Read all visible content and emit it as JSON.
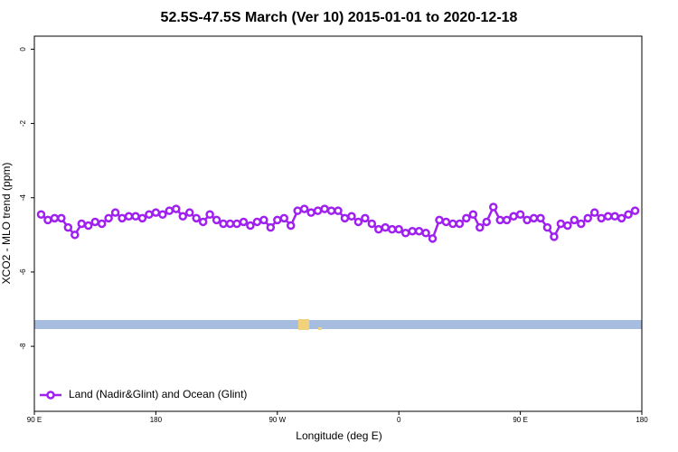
{
  "chart_data": {
    "type": "line",
    "title": "52.5S-47.5S March (Ver 10)   2015-01-01 to 2020-12-18",
    "x_label": "Longitude (deg E)",
    "y_label": "XCO2 - MLO trend (ppm)",
    "xlim": [
      90,
      540
    ],
    "ylim": [
      -9.75,
      0.35
    ],
    "xticks": [
      {
        "value": 90,
        "label": "90 E"
      },
      180,
      {
        "value": 270,
        "label": "90 W"
      },
      {
        "value": 360,
        "label": "0"
      },
      {
        "value": 450,
        "label": "90 E"
      },
      {
        "value": 540,
        "label": "180"
      }
    ],
    "yticks": [
      0,
      -2,
      -4,
      -6,
      -8
    ],
    "legend": "bottom-left",
    "x": [
      95,
      100,
      105,
      110,
      115,
      120,
      125,
      130,
      135,
      140,
      145,
      150,
      155,
      160,
      165,
      170,
      175,
      180,
      185,
      190,
      195,
      200,
      205,
      210,
      215,
      220,
      225,
      230,
      235,
      240,
      245,
      250,
      255,
      260,
      265,
      270,
      275,
      280,
      285,
      290,
      295,
      300,
      305,
      310,
      315,
      320,
      325,
      330,
      335,
      340,
      345,
      350,
      355,
      360,
      365,
      370,
      375,
      380,
      385,
      390,
      395,
      400,
      405,
      410,
      415,
      420,
      425,
      430,
      435,
      440,
      445,
      450,
      455,
      460,
      465,
      470,
      475,
      480,
      485,
      490,
      495,
      500,
      505,
      510,
      515,
      520,
      525,
      530,
      535
    ],
    "series": [
      {
        "name": "Land (Nadir&Glint) and Ocean (Glint)",
        "color": "#a020f0",
        "values": [
          -4.45,
          -4.6,
          -4.55,
          -4.55,
          -4.8,
          -5.0,
          -4.7,
          -4.75,
          -4.65,
          -4.7,
          -4.55,
          -4.4,
          -4.55,
          -4.5,
          -4.5,
          -4.55,
          -4.45,
          -4.4,
          -4.45,
          -4.35,
          -4.3,
          -4.5,
          -4.4,
          -4.55,
          -4.65,
          -4.45,
          -4.6,
          -4.7,
          -4.7,
          -4.7,
          -4.65,
          -4.75,
          -4.65,
          -4.6,
          -4.8,
          -4.6,
          -4.55,
          -4.75,
          -4.35,
          -4.3,
          -4.4,
          -4.35,
          -4.3,
          -4.35,
          -4.35,
          -4.55,
          -4.5,
          -4.65,
          -4.55,
          -4.7,
          -4.85,
          -4.8,
          -4.85,
          -4.85,
          -4.95,
          -4.9,
          -4.9,
          -4.95,
          -5.1,
          -4.6,
          -4.65,
          -4.7,
          -4.7,
          -4.55,
          -4.45,
          -4.8,
          -4.65,
          -4.25,
          -4.6,
          -4.6,
          -4.5,
          -4.45,
          -4.6,
          -4.55,
          -4.55,
          -4.8,
          -5.05,
          -4.7,
          -4.75,
          -4.6,
          -4.7,
          -4.55,
          -4.4,
          -4.55,
          -4.5,
          -4.5,
          -4.55,
          -4.45,
          -4.35
        ]
      }
    ]
  }
}
